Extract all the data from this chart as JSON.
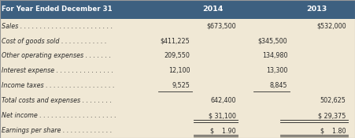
{
  "header_bg": "#3d6080",
  "header_text_color": "#ffffff",
  "body_bg": "#f0e8d5",
  "body_text_color": "#2b2b2b",
  "header_label": "For Year Ended December 31",
  "col2014": "2014",
  "col2013": "2013",
  "rows": [
    {
      "label": "Sales . . . . . . . . . . . . . . . . . . . . . . . .",
      "c1": "",
      "c2": "$673,500",
      "c3": "",
      "c4": "$532,000",
      "ul_c1": false,
      "ul_c2": false,
      "dbl_c2": false,
      "dbl_c4": false
    },
    {
      "label": "Cost of goods sold . . . . . . . . . . . .",
      "c1": "$411,225",
      "c2": "",
      "c3": "$345,500",
      "c4": "",
      "ul_c1": false,
      "ul_c2": false,
      "dbl_c2": false,
      "dbl_c4": false
    },
    {
      "label": "Other operating expenses . . . . . . .",
      "c1": "209,550",
      "c2": "",
      "c3": "134,980",
      "c4": "",
      "ul_c1": false,
      "ul_c2": false,
      "dbl_c2": false,
      "dbl_c4": false
    },
    {
      "label": "Interest expense . . . . . . . . . . . . . . .",
      "c1": "12,100",
      "c2": "",
      "c3": "13,300",
      "c4": "",
      "ul_c1": false,
      "ul_c2": false,
      "dbl_c2": false,
      "dbl_c4": false
    },
    {
      "label": "Income taxes . . . . . . . . . . . . . . . . . .",
      "c1": "9,525",
      "c2": "",
      "c3": "8,845",
      "c4": "",
      "ul_c1": true,
      "ul_c2": false,
      "dbl_c2": false,
      "dbl_c4": false
    },
    {
      "label": "Total costs and expenses . . . . . . . .",
      "c1": "",
      "c2": "642,400",
      "c3": "",
      "c4": "502,625",
      "ul_c1": false,
      "ul_c2": false,
      "dbl_c2": false,
      "dbl_c4": false
    },
    {
      "label": "Net income . . . . . . . . . . . . . . . . . . . .",
      "c1": "",
      "c2": "$ 31,100",
      "c3": "",
      "c4": "$ 29,375",
      "ul_c1": false,
      "ul_c2": false,
      "dbl_c2": true,
      "dbl_c4": true
    },
    {
      "label": "Earnings per share . . . . . . . . . . . . .",
      "c1": "",
      "c2": "$    1.90",
      "c3": "",
      "c4": "$    1.80",
      "ul_c1": false,
      "ul_c2": false,
      "dbl_c2": true,
      "dbl_c4": true
    }
  ],
  "figsize": [
    4.51,
    1.75
  ],
  "dpi": 100
}
